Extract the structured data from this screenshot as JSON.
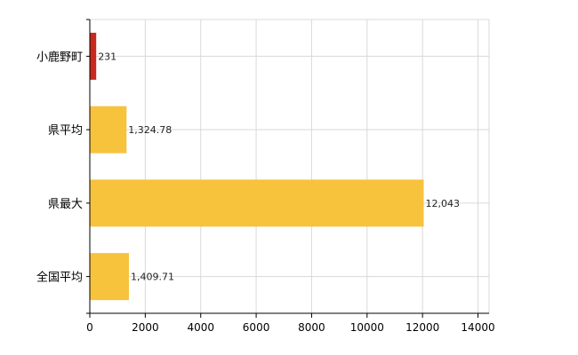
{
  "chart_data": {
    "type": "bar",
    "orientation": "horizontal",
    "categories": [
      "小鹿野町",
      "県平均",
      "県最大",
      "全国平均"
    ],
    "values": [
      231,
      1324.78,
      12043,
      1409.71
    ],
    "data_labels": [
      "231",
      "1,324.78",
      "12,043",
      "1,409.71"
    ],
    "bar_colors": [
      "#c8281e",
      "#f7c23c",
      "#f7c23c",
      "#f7c23c"
    ],
    "xlim": [
      0,
      14400
    ],
    "xticks": [
      0,
      2000,
      4000,
      6000,
      8000,
      10000,
      12000,
      14000
    ],
    "xtick_labels": [
      "0",
      "2000",
      "4000",
      "6000",
      "8000",
      "10000",
      "12000",
      "14000"
    ],
    "grid": true,
    "grid_color": "#d9d9d9",
    "axis_color": "#000000"
  }
}
